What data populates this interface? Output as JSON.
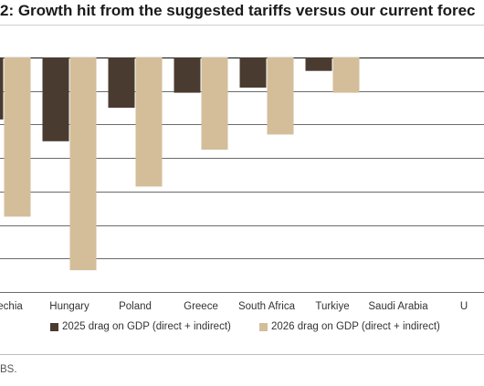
{
  "title": "2: Growth hit from the suggested tariffs versus our current forec",
  "source": "BS.",
  "chart_data": {
    "type": "bar",
    "categories": [
      "Czechia",
      "Hungary",
      "Poland",
      "Greece",
      "South Africa",
      "Turkiye",
      "Saudi Arabia",
      "U"
    ],
    "series": [
      {
        "name": "2025 drag on GDP (direct + indirect)",
        "color": "#4a3b31",
        "values": [
          -0.185,
          -0.25,
          -0.15,
          -0.105,
          -0.09,
          -0.04,
          0,
          null
        ]
      },
      {
        "name": "2026 drag on GDP (direct + indirect)",
        "color": "#d3be99",
        "values": [
          -0.475,
          -0.635,
          -0.385,
          -0.275,
          -0.23,
          -0.105,
          0,
          null
        ]
      }
    ],
    "ylim": [
      -0.7,
      0
    ],
    "grid": true,
    "legend_position": "bottom"
  }
}
